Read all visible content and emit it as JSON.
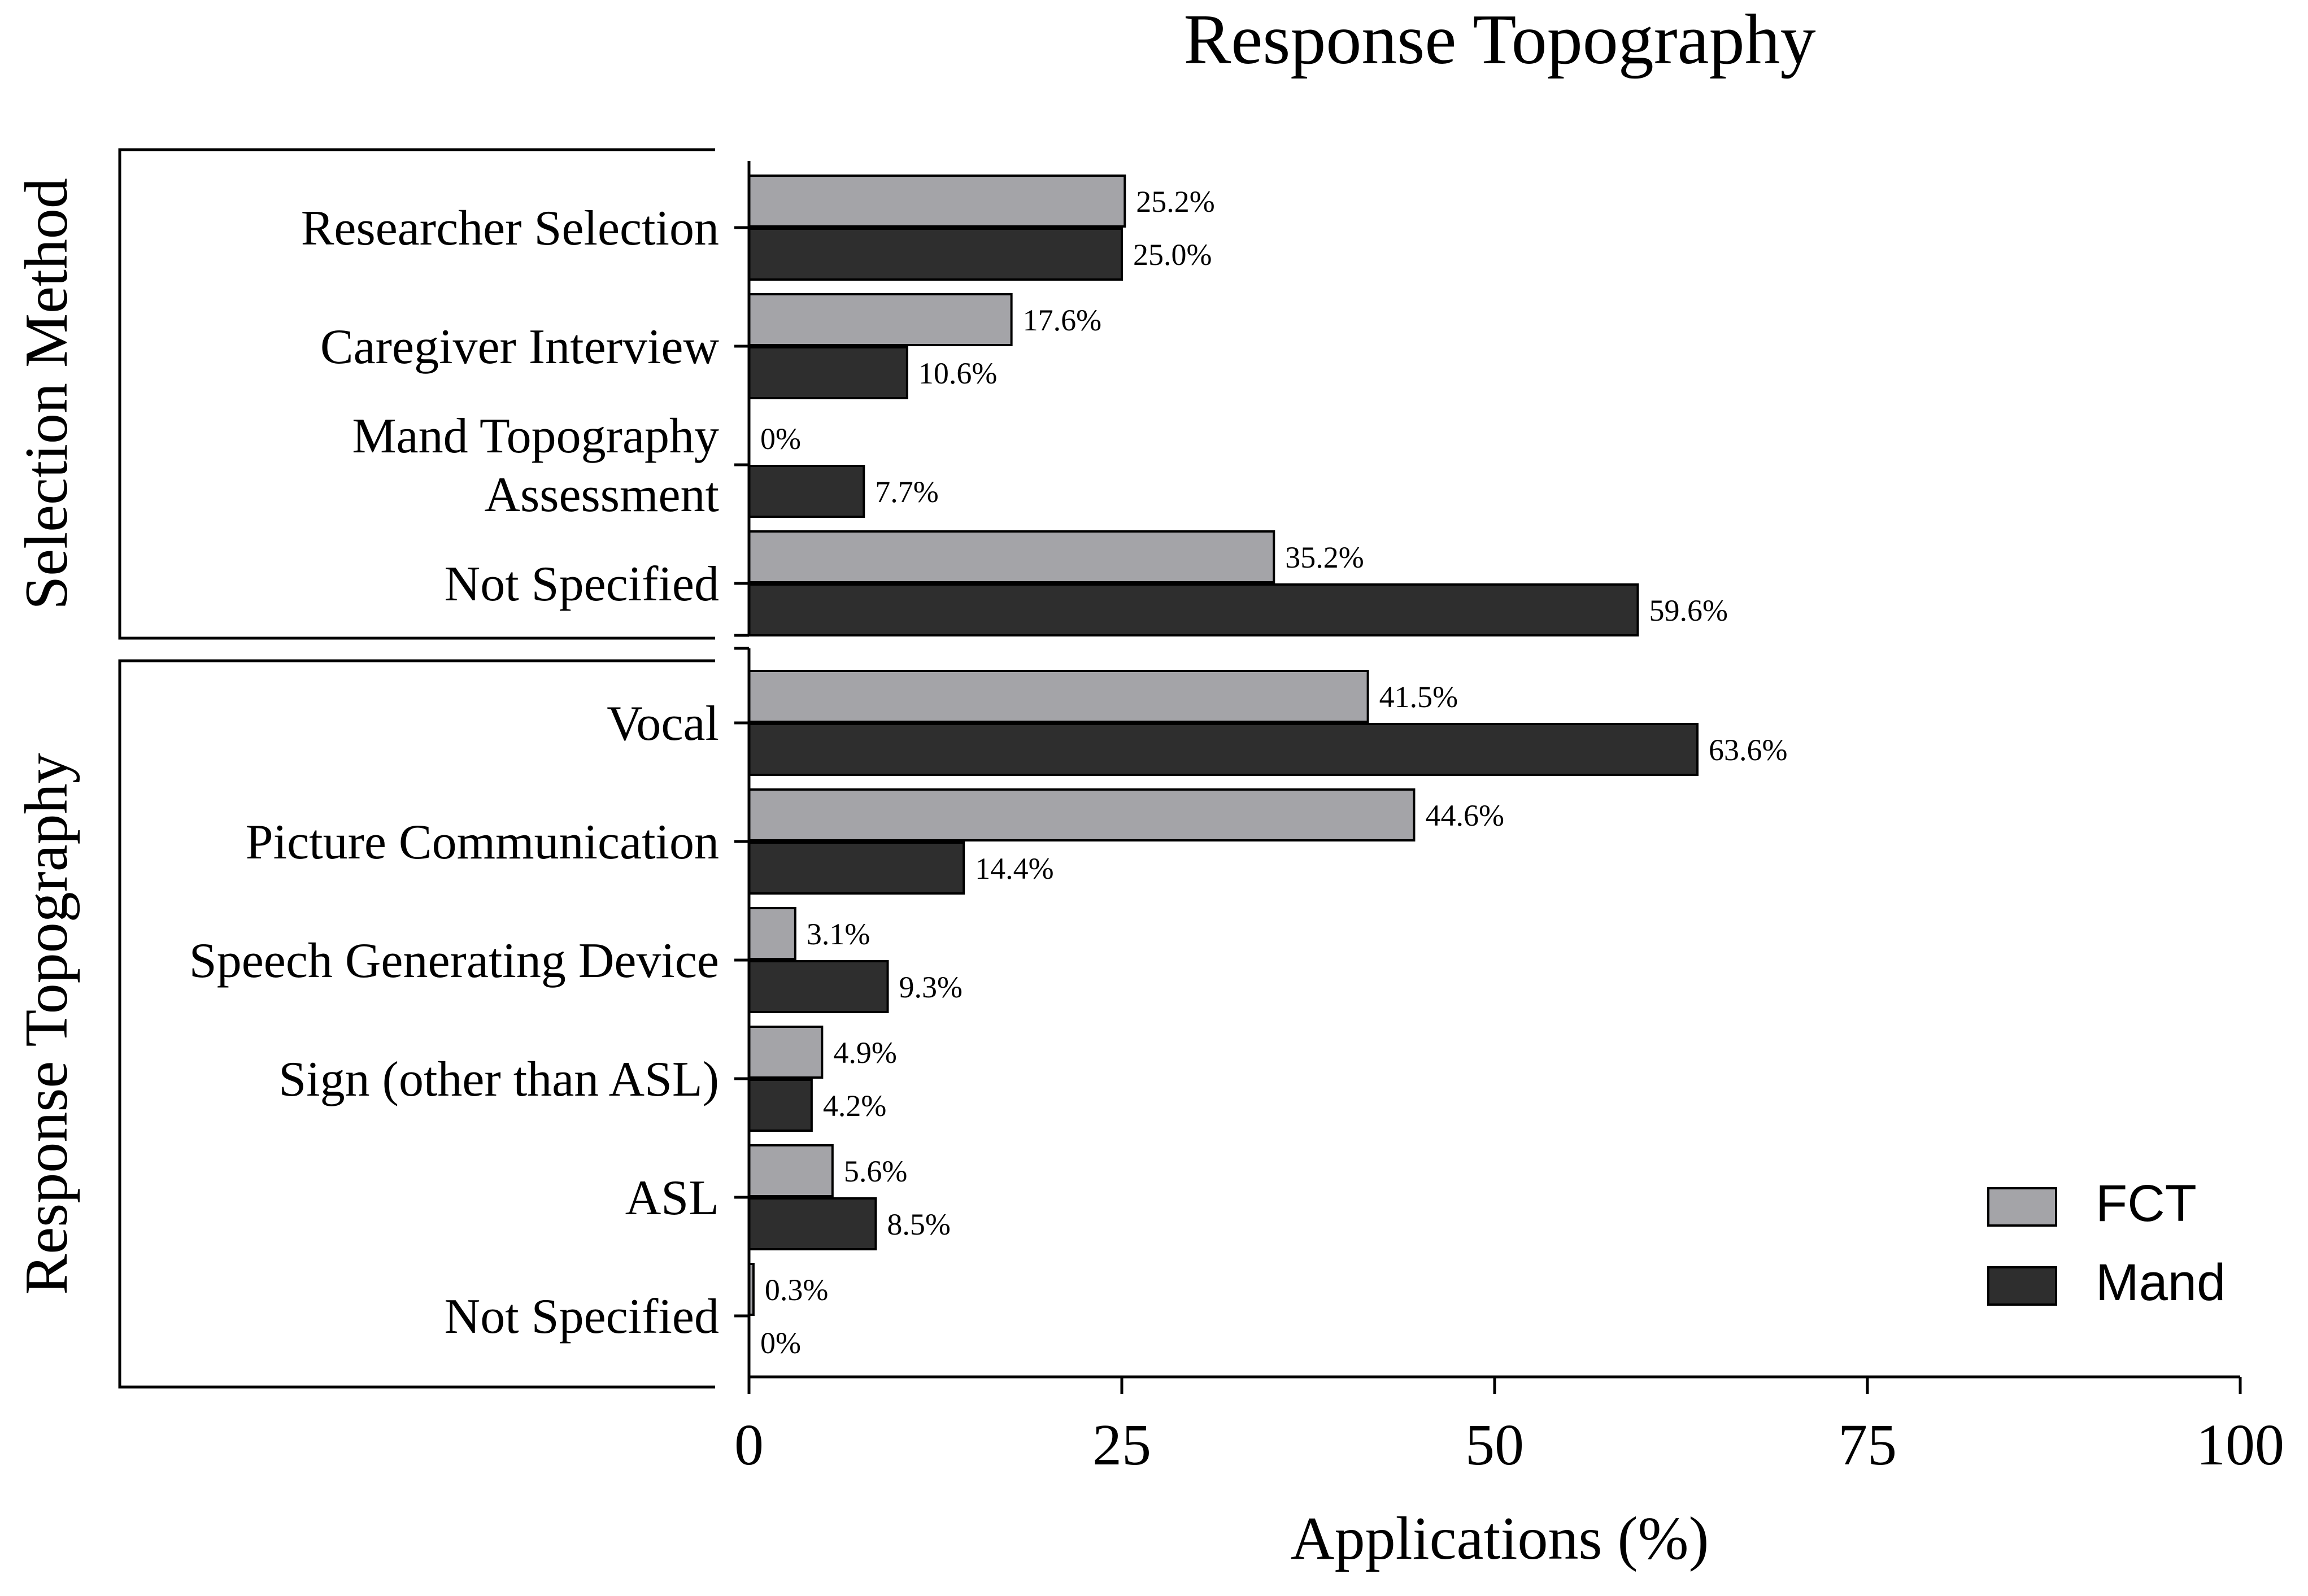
{
  "chart_data": {
    "type": "bar",
    "orientation": "horizontal",
    "title": "Response Topography",
    "xlabel": "Applications (%)",
    "xlim": [
      0,
      100
    ],
    "xticks": [
      "0",
      "25",
      "50",
      "75",
      "100"
    ],
    "legend": {
      "position": "bottom-right",
      "entries": [
        "FCT",
        "Mand"
      ]
    },
    "colors": {
      "FCT": "#a4a4a8",
      "Mand": "#2e2e2e",
      "edge": "#000000"
    },
    "groups": [
      {
        "name": "Selection Method",
        "categories": [
          {
            "label": [
              "Researcher Selection"
            ],
            "FCT": 25.2,
            "Mand": 25.0,
            "FCT_label": "25.2%",
            "Mand_label": "25.0%"
          },
          {
            "label": [
              "Caregiver Interview"
            ],
            "FCT": 17.6,
            "Mand": 10.6,
            "FCT_label": "17.6%",
            "Mand_label": "10.6%"
          },
          {
            "label": [
              "Mand Topography",
              "Assessment"
            ],
            "FCT": 0,
            "Mand": 7.7,
            "FCT_label": "0%",
            "Mand_label": "7.7%"
          },
          {
            "label": [
              "Not Specified"
            ],
            "FCT": 35.2,
            "Mand": 59.6,
            "FCT_label": "35.2%",
            "Mand_label": "59.6%"
          }
        ]
      },
      {
        "name": "Response Topography",
        "categories": [
          {
            "label": [
              "Vocal"
            ],
            "FCT": 41.5,
            "Mand": 63.6,
            "FCT_label": "41.5%",
            "Mand_label": "63.6%"
          },
          {
            "label": [
              "Picture Communication"
            ],
            "FCT": 44.6,
            "Mand": 14.4,
            "FCT_label": "44.6%",
            "Mand_label": "14.4%"
          },
          {
            "label": [
              "Speech Generating Device"
            ],
            "FCT": 3.1,
            "Mand": 9.3,
            "FCT_label": "3.1%",
            "Mand_label": "9.3%"
          },
          {
            "label": [
              "Sign (other than ASL)"
            ],
            "FCT": 4.9,
            "Mand": 4.2,
            "FCT_label": "4.9%",
            "Mand_label": "4.2%"
          },
          {
            "label": [
              "ASL"
            ],
            "FCT": 5.6,
            "Mand": 8.5,
            "FCT_label": "5.6%",
            "Mand_label": "8.5%"
          },
          {
            "label": [
              "Not Specified"
            ],
            "FCT": 0.3,
            "Mand": 0,
            "FCT_label": "0.3%",
            "Mand_label": "0%"
          }
        ]
      }
    ]
  }
}
